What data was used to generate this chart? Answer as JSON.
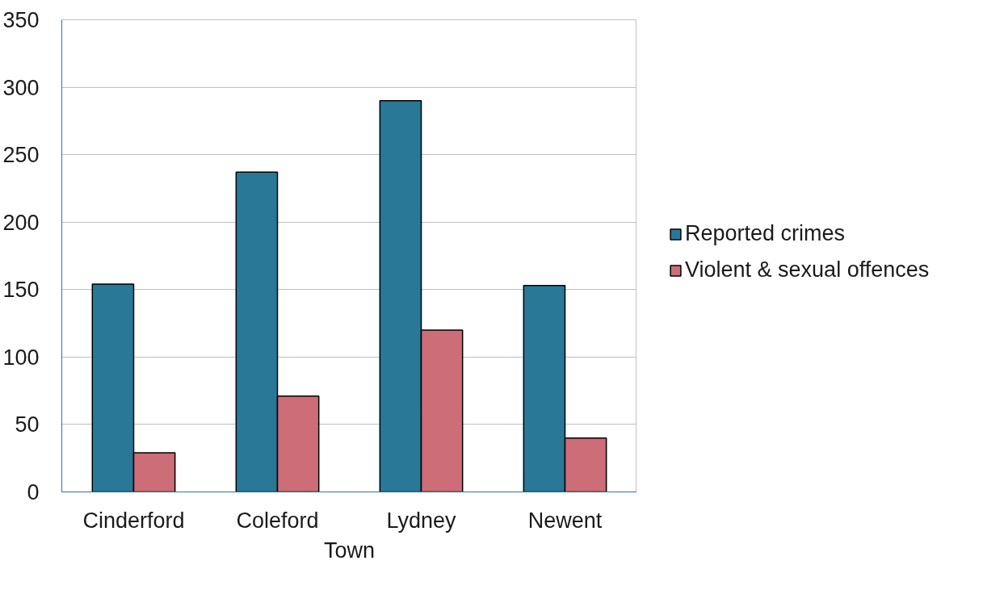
{
  "chart_data": {
    "type": "bar",
    "xlabel": "Town",
    "categories": [
      "Cinderford",
      "Coleford",
      "Lydney",
      "Newent"
    ],
    "series": [
      {
        "name": "Reported crimes",
        "color": "#2a7898",
        "values": [
          154,
          237,
          290,
          153
        ]
      },
      {
        "name": "Violent & sexual offences",
        "color": "#cc6d77",
        "values": [
          29,
          71,
          120,
          40
        ]
      }
    ],
    "ylim": [
      0,
      350
    ],
    "yticks": [
      0,
      50,
      100,
      150,
      200,
      250,
      300,
      350
    ],
    "grid": "y",
    "legend": "right"
  }
}
